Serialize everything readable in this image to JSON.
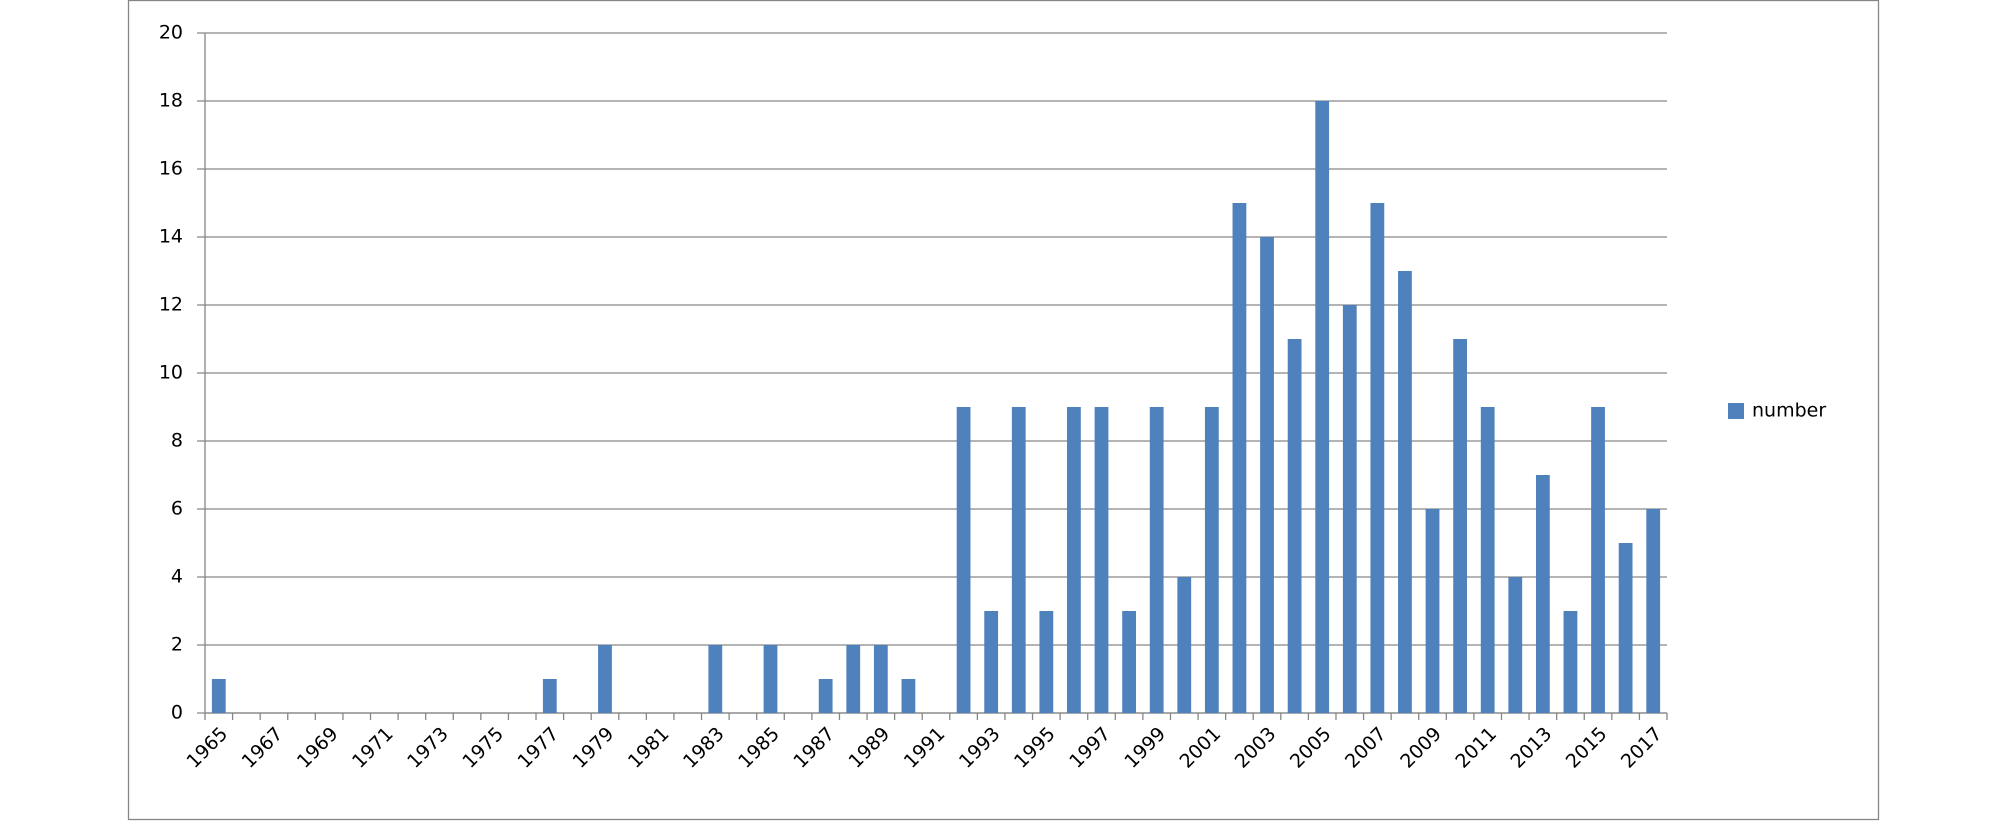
{
  "chart_data": {
    "type": "bar",
    "categories": [
      "1965",
      null,
      "1967",
      null,
      "1969",
      null,
      "1971",
      null,
      "1973",
      null,
      "1975",
      null,
      "1977",
      null,
      "1979",
      null,
      "1981",
      null,
      "1983",
      null,
      "1985",
      null,
      "1987",
      null,
      "1989",
      null,
      "1991",
      null,
      "1993",
      null,
      "1995",
      null,
      "1997",
      null,
      "1999",
      null,
      "2001",
      null,
      "2003",
      null,
      "2005",
      null,
      "2007",
      null,
      "2009",
      null,
      "2011",
      null,
      "2013",
      null,
      "2015",
      null,
      "2017"
    ],
    "series": [
      {
        "name": "number",
        "color": "#4f81bd",
        "values": [
          1,
          0,
          0,
          0,
          0,
          0,
          0,
          0,
          0,
          0,
          0,
          0,
          1,
          0,
          2,
          0,
          0,
          0,
          2,
          0,
          2,
          0,
          1,
          2,
          2,
          1,
          0,
          9,
          3,
          9,
          3,
          9,
          9,
          3,
          9,
          4,
          9,
          15,
          14,
          11,
          18,
          12,
          15,
          13,
          6,
          11,
          9,
          4,
          7,
          3,
          9,
          5,
          6
        ]
      }
    ],
    "ylim": [
      0,
      20
    ],
    "yticks": [
      0,
      2,
      4,
      6,
      8,
      10,
      12,
      14,
      16,
      18,
      20
    ],
    "grid": true,
    "legend": "right"
  }
}
